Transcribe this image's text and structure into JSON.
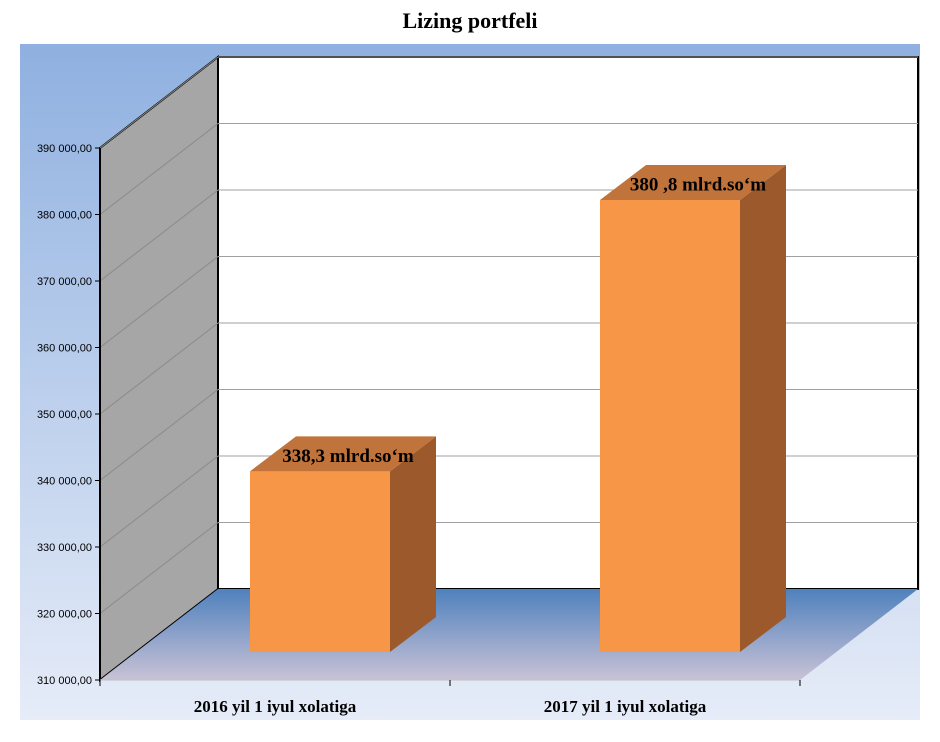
{
  "chart_data": {
    "type": "bar",
    "title": "Lizing portfeli",
    "categories": [
      "2016 yil 1 iyul xolatiga",
      "2017 yil 1 iyul xolatiga"
    ],
    "values": [
      338300,
      380800
    ],
    "data_labels": [
      "338,3 mlrd.so‘m",
      "380 ,8 mlrd.so‘m"
    ],
    "ylim": [
      310000,
      390000
    ],
    "yticks": [
      "310 000,00",
      "320 000,00",
      "330 000,00",
      "340 000,00",
      "350 000,00",
      "360 000,00",
      "370 000,00",
      "380 000,00",
      "390 000,00"
    ],
    "grid": true,
    "legend": "none",
    "colors": {
      "bar_front": "#f79646",
      "bar_top": "#c0733a",
      "bar_side": "#9c5a2c",
      "back_wall": "#ffffff",
      "side_wall": "#a6a6a6",
      "floor": "#4f81bd",
      "bg_top": "#8fb0e0",
      "bg_bottom": "#e6ecf8"
    }
  }
}
